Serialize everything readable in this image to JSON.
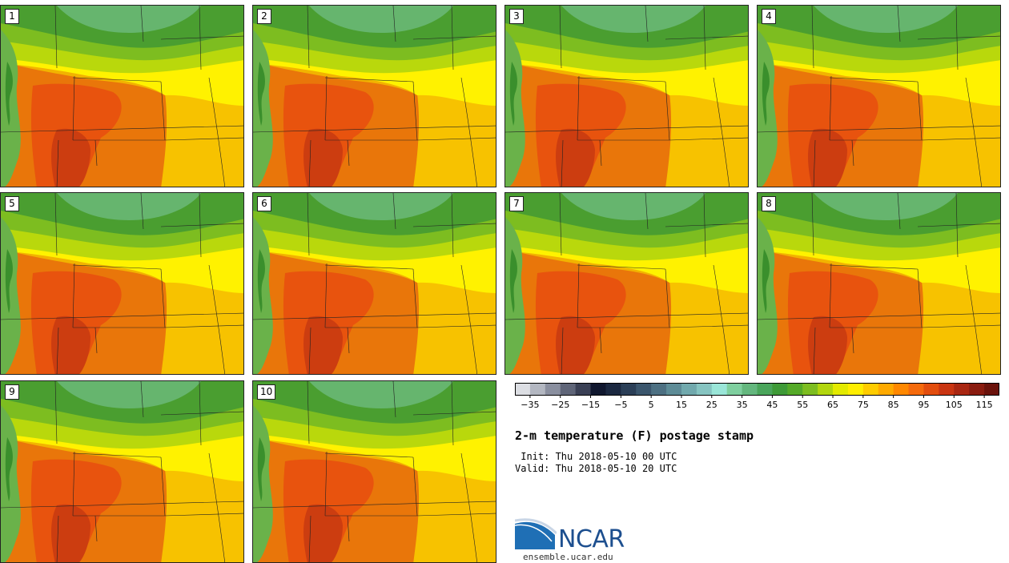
{
  "panels": [
    {
      "label": "1"
    },
    {
      "label": "2"
    },
    {
      "label": "3"
    },
    {
      "label": "4"
    },
    {
      "label": "5"
    },
    {
      "label": "6"
    },
    {
      "label": "7"
    },
    {
      "label": "8"
    },
    {
      "label": "9"
    },
    {
      "label": "10"
    }
  ],
  "colorbar": {
    "colors": [
      "#dcdee3",
      "#b3b7c1",
      "#8a8f9f",
      "#5f6578",
      "#3a4055",
      "#10172e",
      "#1b2840",
      "#2b3f57",
      "#3b566d",
      "#4d7082",
      "#5e8c97",
      "#71a9ad",
      "#86c4c1",
      "#9ae6d8",
      "#7fcf9f",
      "#64b77e",
      "#4aa55b",
      "#3e9a37",
      "#55aa28",
      "#7dbd20",
      "#b2d60e",
      "#e3ea00",
      "#ffee00",
      "#ffcc00",
      "#ffaa00",
      "#ff8800",
      "#f56a0c",
      "#e24d0e",
      "#c93512",
      "#a92712",
      "#8a1c10",
      "#6b130c"
    ],
    "ticks": [
      "-35",
      "-25",
      "-15",
      "-5",
      "5",
      "15",
      "25",
      "35",
      "45",
      "55",
      "65",
      "75",
      "85",
      "95",
      "105",
      "115"
    ]
  },
  "title": "2-m temperature (F) postage stamp",
  "init_line": " Init: Thu 2018-05-10 00 UTC",
  "valid_line": "Valid: Thu 2018-05-10 20 UTC",
  "logo": {
    "text": "NCAR",
    "url": "ensemble.ucar.edu"
  }
}
